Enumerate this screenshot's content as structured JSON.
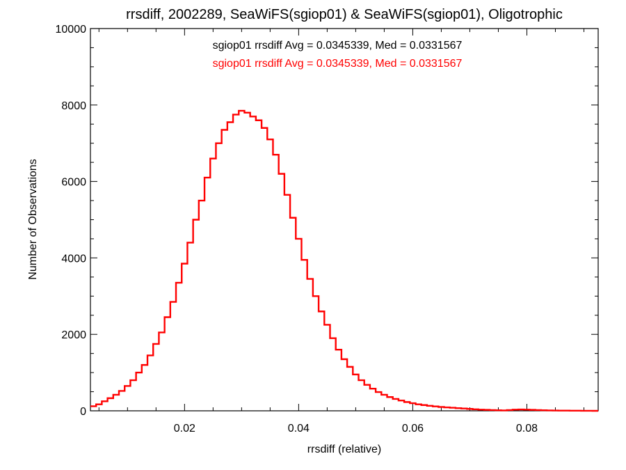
{
  "chart_data": {
    "type": "line",
    "step": true,
    "title": "rrsdiff, 2002289, SeaWiFS(sgiop01) & SeaWiFS(sgiop01), Oligotrophic",
    "xlabel": "rrsdiff (relative)",
    "ylabel": "Number of Observations",
    "xlim": [
      0.0035,
      0.0925
    ],
    "ylim": [
      0,
      10000
    ],
    "x_ticks": [
      0.02,
      0.04,
      0.06,
      0.08
    ],
    "x_tick_labels": [
      "0.02",
      "0.04",
      "0.06",
      "0.08"
    ],
    "y_ticks": [
      0,
      2000,
      4000,
      6000,
      8000,
      10000
    ],
    "y_tick_labels": [
      "0",
      "2000",
      "4000",
      "6000",
      "8000",
      "10000"
    ],
    "grid": false,
    "annotations": [
      {
        "text": "sgiop01 rrsdiff Avg = 0.0345339, Med = 0.0331567",
        "color": "#000000"
      },
      {
        "text": "sgiop01 rrsdiff Avg = 0.0345339, Med = 0.0331567",
        "color": "#ff0000"
      }
    ],
    "series": [
      {
        "color": "#ff0000",
        "x": [
          0.0035,
          0.0045,
          0.0055,
          0.0065,
          0.0075,
          0.0085,
          0.0095,
          0.0105,
          0.0115,
          0.0125,
          0.0135,
          0.0145,
          0.0155,
          0.0165,
          0.0175,
          0.0185,
          0.0195,
          0.0205,
          0.0215,
          0.0225,
          0.0235,
          0.0245,
          0.0255,
          0.0265,
          0.0275,
          0.0285,
          0.0295,
          0.0305,
          0.0315,
          0.0325,
          0.0335,
          0.0345,
          0.0355,
          0.0365,
          0.0375,
          0.0385,
          0.0395,
          0.0405,
          0.0415,
          0.0425,
          0.0435,
          0.0445,
          0.0455,
          0.0465,
          0.0475,
          0.0485,
          0.0495,
          0.0505,
          0.0515,
          0.0525,
          0.0535,
          0.0545,
          0.0555,
          0.0565,
          0.0575,
          0.0585,
          0.0595,
          0.0605,
          0.0615,
          0.0625,
          0.0635,
          0.0645,
          0.0655,
          0.0665,
          0.0675,
          0.0685,
          0.0695,
          0.0705,
          0.0715,
          0.0725,
          0.0735,
          0.0745,
          0.0755,
          0.0765,
          0.0775,
          0.0785,
          0.0795,
          0.0805,
          0.0815,
          0.0825,
          0.0835,
          0.0845,
          0.0855,
          0.0865,
          0.0875,
          0.0885,
          0.0895,
          0.0905,
          0.0915
        ],
        "y": [
          120,
          170,
          250,
          330,
          420,
          520,
          650,
          800,
          1000,
          1200,
          1450,
          1750,
          2050,
          2450,
          2850,
          3350,
          3850,
          4400,
          5000,
          5500,
          6100,
          6600,
          7000,
          7350,
          7550,
          7750,
          7850,
          7800,
          7700,
          7600,
          7400,
          7100,
          6700,
          6200,
          5650,
          5050,
          4500,
          3950,
          3450,
          3000,
          2600,
          2250,
          1900,
          1600,
          1350,
          1150,
          950,
          800,
          680,
          580,
          490,
          420,
          360,
          310,
          270,
          230,
          200,
          170,
          150,
          130,
          115,
          100,
          90,
          80,
          70,
          60,
          50,
          40,
          30,
          25,
          20,
          15,
          10,
          20,
          30,
          35,
          30,
          25,
          20,
          15,
          10,
          8,
          6,
          5,
          4,
          3,
          2,
          1,
          0
        ]
      }
    ]
  }
}
